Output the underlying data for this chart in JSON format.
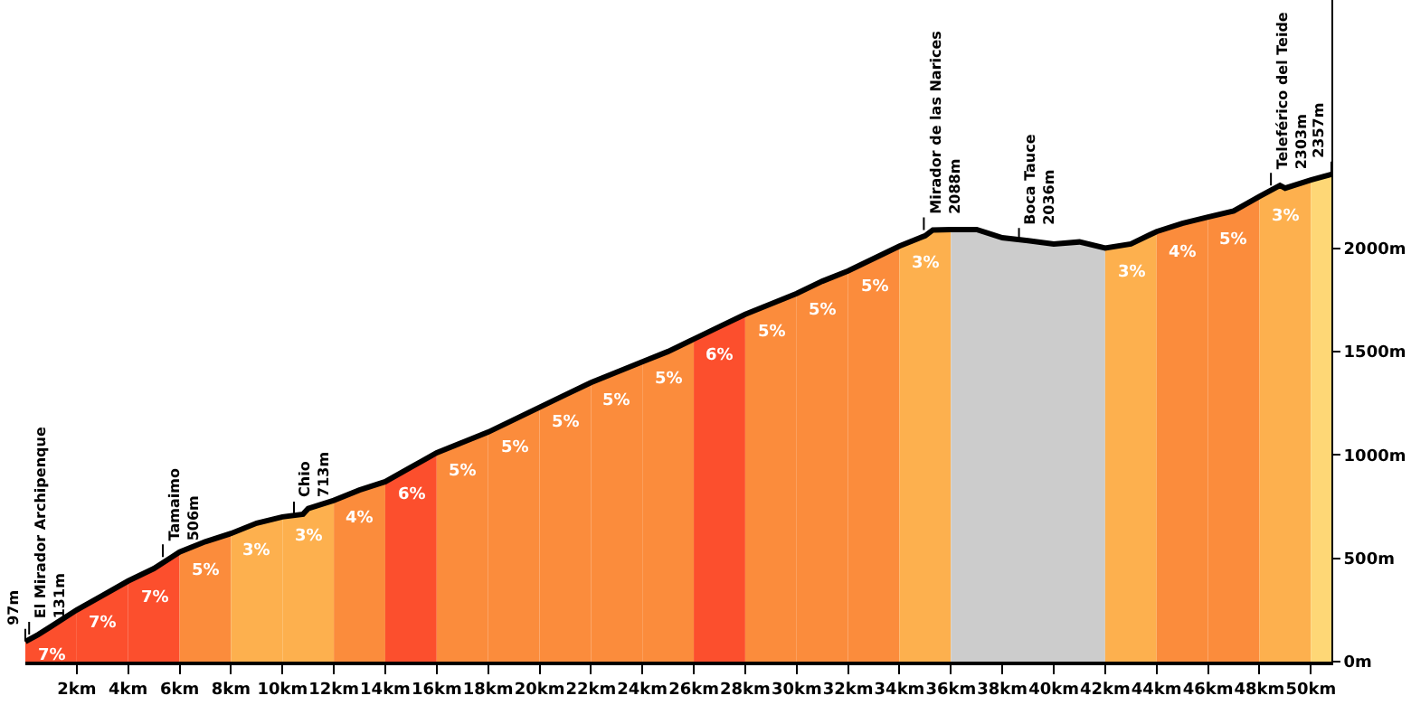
{
  "chart_data": {
    "type": "area",
    "x": [
      0,
      0.5,
      1,
      2,
      3,
      4,
      5,
      5.7,
      6,
      7,
      8,
      9,
      10,
      10.8,
      11,
      12,
      13,
      14,
      15,
      16,
      17,
      18,
      19,
      20,
      21,
      22,
      23,
      24,
      25,
      26,
      27,
      28,
      29,
      30,
      31,
      32,
      33,
      34,
      35,
      35.3,
      36,
      37,
      38,
      39,
      40,
      41,
      42,
      43,
      44,
      45,
      46,
      47,
      48,
      48.8,
      49,
      50,
      50.8
    ],
    "series": [
      {
        "name": "7%",
        "color": "#fc4f2d",
        "x": [
          0,
          0.5,
          1,
          2
        ],
        "values": [
          97,
          131,
          170,
          250
        ]
      },
      {
        "name": "7%",
        "color": "#fc4f2d",
        "x": [
          2,
          3,
          4
        ],
        "values": [
          250,
          320,
          390
        ]
      },
      {
        "name": "7%",
        "color": "#fc4f2d",
        "x": [
          4,
          5,
          5.7,
          6
        ],
        "values": [
          390,
          450,
          506,
          530
        ]
      },
      {
        "name": "5%",
        "color": "#fb8c3c",
        "x": [
          6,
          7,
          8
        ],
        "values": [
          530,
          580,
          620
        ]
      },
      {
        "name": "3%",
        "color": "#fdb04e",
        "x": [
          8,
          9,
          10
        ],
        "values": [
          620,
          670,
          700
        ]
      },
      {
        "name": "3%",
        "color": "#fdb04e",
        "x": [
          10,
          10.8,
          11,
          12
        ],
        "values": [
          700,
          713,
          740,
          780
        ]
      },
      {
        "name": "4%",
        "color": "#fb8c3c",
        "x": [
          12,
          13,
          14
        ],
        "values": [
          780,
          830,
          870
        ]
      },
      {
        "name": "6%",
        "color": "#fc4f2d",
        "x": [
          14,
          15,
          16
        ],
        "values": [
          870,
          940,
          1010
        ]
      },
      {
        "name": "5%",
        "color": "#fb8c3c",
        "x": [
          16,
          17,
          18
        ],
        "values": [
          1010,
          1060,
          1110
        ]
      },
      {
        "name": "5%",
        "color": "#fb8c3c",
        "x": [
          18,
          19,
          20
        ],
        "values": [
          1110,
          1170,
          1230
        ]
      },
      {
        "name": "5%",
        "color": "#fb8c3c",
        "x": [
          20,
          21,
          22
        ],
        "values": [
          1230,
          1290,
          1350
        ]
      },
      {
        "name": "5%",
        "color": "#fb8c3c",
        "x": [
          22,
          23,
          24
        ],
        "values": [
          1350,
          1400,
          1450
        ]
      },
      {
        "name": "5%",
        "color": "#fb8c3c",
        "x": [
          24,
          25,
          26
        ],
        "values": [
          1450,
          1500,
          1560
        ]
      },
      {
        "name": "6%",
        "color": "#fc4f2d",
        "x": [
          26,
          27,
          28
        ],
        "values": [
          1560,
          1620,
          1680
        ]
      },
      {
        "name": "5%",
        "color": "#fb8c3c",
        "x": [
          28,
          29,
          30
        ],
        "values": [
          1680,
          1730,
          1780
        ]
      },
      {
        "name": "5%",
        "color": "#fb8c3c",
        "x": [
          30,
          31,
          32
        ],
        "values": [
          1780,
          1840,
          1890
        ]
      },
      {
        "name": "5%",
        "color": "#fb8c3c",
        "x": [
          32,
          33,
          34
        ],
        "values": [
          1890,
          1950,
          2010
        ]
      },
      {
        "name": "3%",
        "color": "#fdb04e",
        "x": [
          34,
          35,
          35.3,
          36
        ],
        "values": [
          2010,
          2060,
          2088,
          2090
        ]
      },
      {
        "color": "#cccccc",
        "x": [
          36,
          37,
          38,
          39,
          40,
          41,
          42
        ],
        "values": [
          2090,
          2090,
          2050,
          2036,
          2020,
          2030,
          2000
        ]
      },
      {
        "name": "3%",
        "color": "#fdb04e",
        "x": [
          42,
          43,
          44
        ],
        "values": [
          2000,
          2020,
          2080
        ]
      },
      {
        "name": "4%",
        "color": "#fb8c3c",
        "x": [
          44,
          45,
          46
        ],
        "values": [
          2080,
          2120,
          2150
        ]
      },
      {
        "name": "5%",
        "color": "#fb8c3c",
        "x": [
          46,
          47,
          48
        ],
        "values": [
          2150,
          2180,
          2250
        ]
      },
      {
        "name": "3%",
        "color": "#fdb04e",
        "x": [
          48,
          48.8,
          49,
          50
        ],
        "values": [
          2250,
          2303,
          2290,
          2330
        ]
      },
      {
        "color": "#fed776",
        "x": [
          50,
          50.8
        ],
        "values": [
          2330,
          2357
        ]
      },
      {
        "type": "line",
        "color": "#000000",
        "values": [
          97,
          131,
          170,
          250,
          320,
          390,
          450,
          506,
          530,
          580,
          620,
          670,
          700,
          713,
          740,
          780,
          830,
          870,
          940,
          1010,
          1060,
          1110,
          1170,
          1230,
          1290,
          1350,
          1400,
          1450,
          1500,
          1560,
          1620,
          1680,
          1730,
          1780,
          1840,
          1890,
          1950,
          2010,
          2060,
          2088,
          2090,
          2090,
          2050,
          2036,
          2020,
          2030,
          2000,
          2020,
          2080,
          2120,
          2150,
          2180,
          2250,
          2303,
          2290,
          2330,
          2357
        ]
      }
    ],
    "annotations": [
      {
        "text": "97m",
        "x": 0,
        "y": 97
      },
      {
        "text": "El Mirador Archipenque\n131m",
        "x": 0.5,
        "y": 131
      },
      {
        "text": "Tamaimo\n506m",
        "x": 5.7,
        "y": 506
      },
      {
        "text": "Chio\n713m",
        "x": 10.8,
        "y": 713
      },
      {
        "text": "Mirador de las Narices\n2088m",
        "x": 35.3,
        "y": 2088
      },
      {
        "text": "Boca Tauce\n2036m",
        "x": 39,
        "y": 2036
      },
      {
        "text": "Teleférico del Teide\n2303m",
        "x": 48.8,
        "y": 2303
      },
      {
        "text": "2357m",
        "x": 50.8,
        "y": 2357
      }
    ],
    "xlim": [
      0,
      50.8
    ],
    "xticks": [
      {
        "value": 2,
        "label": "2km"
      },
      {
        "value": 4,
        "label": "4km"
      },
      {
        "value": 6,
        "label": "6km"
      },
      {
        "value": 8,
        "label": "8km"
      },
      {
        "value": 10,
        "label": "10km"
      },
      {
        "value": 12,
        "label": "12km"
      },
      {
        "value": 14,
        "label": "14km"
      },
      {
        "value": 16,
        "label": "16km"
      },
      {
        "value": 18,
        "label": "18km"
      },
      {
        "value": 20,
        "label": "20km"
      },
      {
        "value": 22,
        "label": "22km"
      },
      {
        "value": 24,
        "label": "24km"
      },
      {
        "value": 26,
        "label": "26km"
      },
      {
        "value": 28,
        "label": "28km"
      },
      {
        "value": 30,
        "label": "30km"
      },
      {
        "value": 32,
        "label": "32km"
      },
      {
        "value": 34,
        "label": "34km"
      },
      {
        "value": 36,
        "label": "36km"
      },
      {
        "value": 38,
        "label": "38km"
      },
      {
        "value": 40,
        "label": "40km"
      },
      {
        "value": 42,
        "label": "42km"
      },
      {
        "value": 44,
        "label": "44km"
      },
      {
        "value": 46,
        "label": "46km"
      },
      {
        "value": 48,
        "label": "48km"
      },
      {
        "value": 50,
        "label": "50km"
      }
    ],
    "ylim": [
      0,
      3200
    ],
    "yticks": [
      {
        "value": 0,
        "label": "0m"
      },
      {
        "value": 500,
        "label": "500m"
      },
      {
        "value": 1000,
        "label": "1000m"
      },
      {
        "value": 1500,
        "label": "1500m"
      },
      {
        "value": 2000,
        "label": "2000m"
      }
    ],
    "marker": "none",
    "line_style": "solid"
  }
}
